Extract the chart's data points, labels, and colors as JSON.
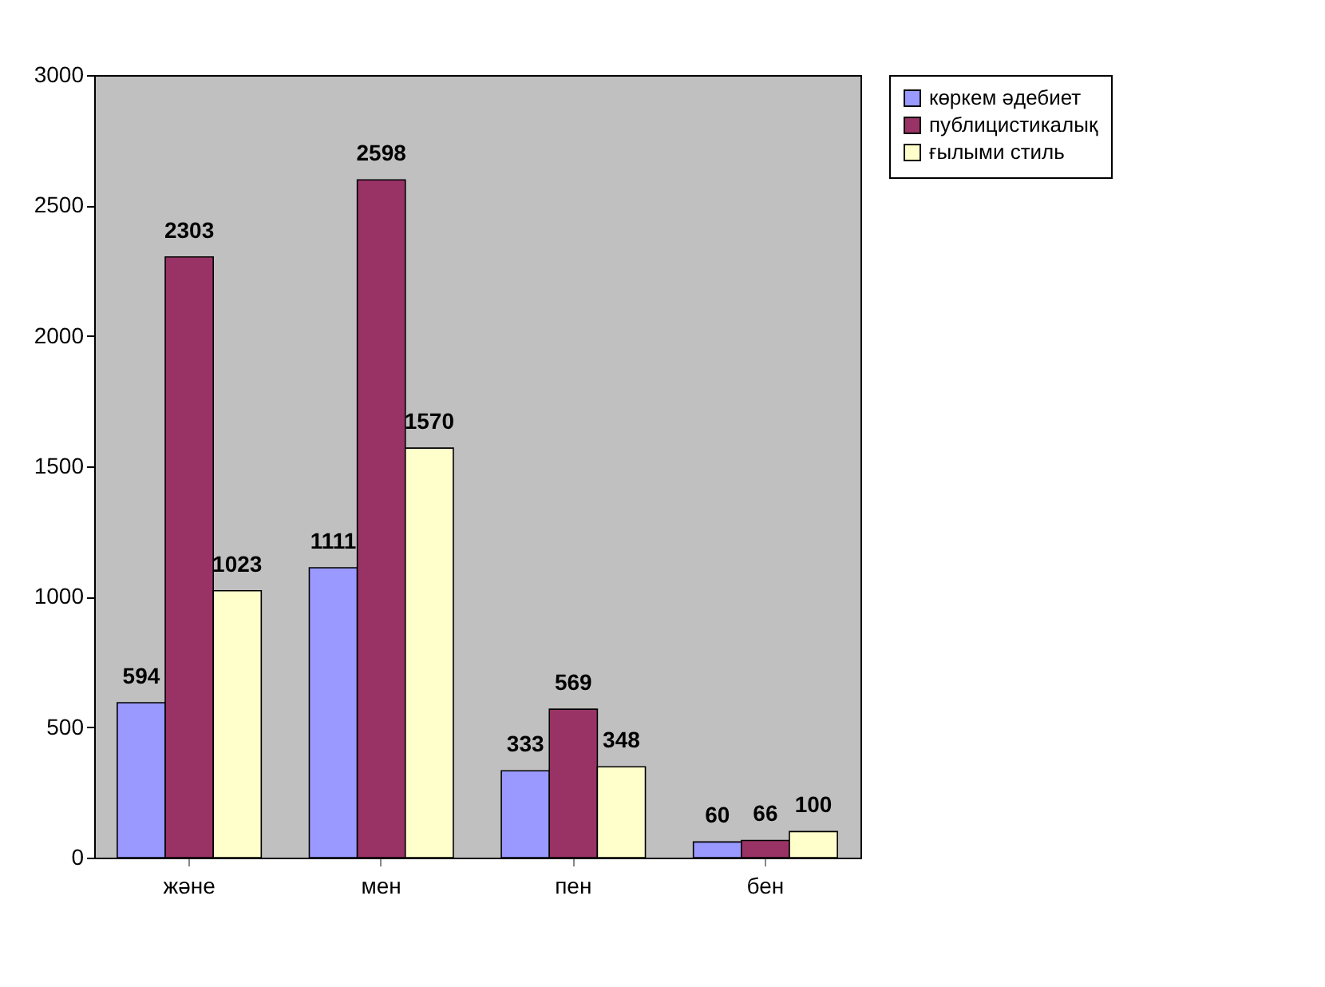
{
  "chart_data": {
    "type": "bar",
    "categories": [
      "және",
      "мен",
      "пен",
      "бен"
    ],
    "series": [
      {
        "name": "көркем әдебиет",
        "color": "#9999ff",
        "values": [
          594,
          1111,
          333,
          60
        ]
      },
      {
        "name": "публицистикалық",
        "color": "#993366",
        "values": [
          2303,
          2598,
          569,
          66
        ]
      },
      {
        "name": "ғылыми стиль",
        "color": "#ffffcc",
        "values": [
          1023,
          1570,
          348,
          100
        ]
      }
    ],
    "ylim": [
      0,
      3000
    ],
    "yticks": [
      0,
      500,
      1000,
      1500,
      2000,
      2500,
      3000
    ],
    "data_labels": true,
    "legend": "right"
  }
}
